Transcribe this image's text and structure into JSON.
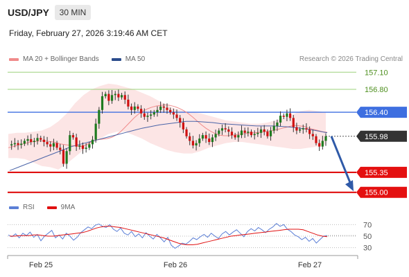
{
  "header": {
    "symbol": "USD/JPY",
    "timeframe": "30 MIN",
    "datetime": "Friday, February 27, 2026 3:19:46 AM CET"
  },
  "legend": {
    "items": [
      {
        "label": "MA 20 + Bollinger Bands",
        "color": "#f08a8a"
      },
      {
        "label": "MA 50",
        "color": "#2b4c8c"
      }
    ],
    "copyright": "Research © 2026 Trading Central"
  },
  "rsi_legend": {
    "items": [
      {
        "label": "RSI",
        "color": "#5b7fd6"
      },
      {
        "label": "9MA",
        "color": "#e01010"
      }
    ]
  },
  "chart_data": {
    "type": "candlestick",
    "instrument": "USD/JPY",
    "timeframe": "30 MIN",
    "ylim": [
      154.9,
      157.2
    ],
    "x_ticks": [
      "Feb 25",
      "Feb 26",
      "Feb 27"
    ],
    "levels": [
      {
        "label": "157.10",
        "value": 157.1,
        "kind": "resistance"
      },
      {
        "label": "156.80",
        "value": 156.8,
        "kind": "resistance"
      },
      {
        "label": "156.40",
        "value": 156.4,
        "kind": "pivot"
      },
      {
        "label": "155.98",
        "value": 155.98,
        "kind": "current"
      },
      {
        "label": "155.35",
        "value": 155.35,
        "kind": "support"
      },
      {
        "label": "155.00",
        "value": 155.0,
        "kind": "support"
      }
    ],
    "closes": [
      155.82,
      155.84,
      155.86,
      155.83,
      155.85,
      155.9,
      155.93,
      155.88,
      155.9,
      155.95,
      155.92,
      155.88,
      155.84,
      155.8,
      155.86,
      155.78,
      155.74,
      155.5,
      155.72,
      156.0,
      155.96,
      155.8,
      155.82,
      155.76,
      155.78,
      155.84,
      155.92,
      156.2,
      156.44,
      156.68,
      156.72,
      156.6,
      156.7,
      156.72,
      156.66,
      156.7,
      156.62,
      156.5,
      156.44,
      156.5,
      156.46,
      156.38,
      156.32,
      156.34,
      156.36,
      156.4,
      156.44,
      156.5,
      156.48,
      156.44,
      156.4,
      156.36,
      156.3,
      156.22,
      156.1,
      155.98,
      155.9,
      155.82,
      155.86,
      155.94,
      156.0,
      155.94,
      155.88,
      155.96,
      156.02,
      156.08,
      156.12,
      156.1,
      156.06,
      156.0,
      155.96,
      156.0,
      156.08,
      156.04,
      156.06,
      156.0,
      156.02,
      156.04,
      156.1,
      156.06,
      155.98,
      156.08,
      156.16,
      156.22,
      156.34,
      156.32,
      156.38,
      156.3,
      156.14,
      156.08,
      156.1,
      156.12,
      156.1,
      156.02,
      155.98,
      155.86,
      155.8,
      155.9,
      155.98
    ],
    "ma20": [
      155.78,
      155.8,
      155.82,
      155.84,
      155.86,
      155.88,
      155.89,
      155.9,
      155.9,
      155.89,
      155.88,
      155.86,
      155.84,
      155.83,
      155.82,
      155.81,
      155.8,
      155.82,
      155.86,
      155.9,
      155.92,
      155.93,
      155.94,
      155.96,
      156.0,
      156.06,
      156.14,
      156.22,
      156.3,
      156.37,
      156.42,
      156.46,
      156.49,
      156.51,
      156.52,
      156.53,
      156.52,
      156.5,
      156.47,
      156.43,
      156.38,
      156.32,
      156.25,
      156.18,
      156.12,
      156.07,
      156.03,
      156.0,
      155.99,
      155.99,
      156.0,
      156.01,
      156.02,
      156.03,
      156.04,
      156.04,
      156.05,
      156.06,
      156.07,
      156.08,
      156.1,
      156.12,
      156.14,
      156.16,
      156.17,
      156.16,
      156.15,
      156.12,
      156.1,
      156.08,
      156.06,
      156.05
    ],
    "ma50": [
      155.38,
      155.44,
      155.5,
      155.56,
      155.62,
      155.68,
      155.74,
      155.8,
      155.84,
      155.88,
      155.92,
      155.96,
      156.0,
      156.04,
      156.08,
      156.12,
      156.15,
      156.18,
      156.2,
      156.22,
      156.24,
      156.24,
      156.23,
      156.22,
      156.2,
      156.19,
      156.18,
      156.17,
      156.16,
      156.16,
      156.16,
      156.15,
      156.14,
      156.12,
      156.1,
      156.07,
      156.04
    ],
    "bollinger_upper": [
      156.02,
      156.04,
      156.04,
      156.06,
      156.08,
      156.14,
      156.24,
      156.38,
      156.56,
      156.7,
      156.8,
      156.86,
      156.9,
      156.88,
      156.84,
      156.8,
      156.74,
      156.68,
      156.6,
      156.52,
      156.46,
      156.42,
      156.4,
      156.38,
      156.34,
      156.3,
      156.26,
      156.24,
      156.22,
      156.2,
      156.2,
      156.22,
      156.26,
      156.3,
      156.36,
      156.42,
      156.44,
      156.42,
      156.4
    ],
    "bollinger_lower": [
      155.6,
      155.6,
      155.58,
      155.52,
      155.46,
      155.44,
      155.4,
      155.5,
      155.62,
      155.74,
      155.86,
      155.94,
      156.02,
      156.06,
      156.06,
      156.0,
      155.94,
      155.86,
      155.8,
      155.74,
      155.7,
      155.68,
      155.68,
      155.72,
      155.78,
      155.82,
      155.86,
      155.88,
      155.88,
      155.86,
      155.84,
      155.82,
      155.8,
      155.78,
      155.76,
      155.76,
      155.78,
      155.8,
      155.84
    ],
    "rsi": {
      "ticks": [
        70,
        50,
        30
      ],
      "ylim": [
        20,
        80
      ],
      "rsi": [
        52,
        49,
        54,
        47,
        55,
        51,
        57,
        48,
        53,
        42,
        50,
        55,
        60,
        47,
        52,
        45,
        55,
        50,
        43,
        48,
        56,
        61,
        66,
        63,
        69,
        71,
        67,
        65,
        70,
        62,
        58,
        64,
        55,
        52,
        58,
        49,
        54,
        47,
        56,
        50,
        45,
        53,
        47,
        40,
        48,
        34,
        29,
        33,
        38,
        36,
        41,
        47,
        44,
        49,
        53,
        48,
        55,
        50,
        46,
        54,
        58,
        52,
        57,
        61,
        55,
        49,
        58,
        63,
        59,
        65,
        61,
        56,
        62,
        66,
        72,
        67,
        70,
        62,
        58,
        52,
        49,
        44,
        48,
        41,
        46,
        38,
        44,
        50,
        51
      ],
      "ma9": [
        50,
        50,
        51,
        51,
        51,
        52,
        52,
        51,
        50,
        50,
        51,
        52,
        53,
        54,
        55,
        56,
        58,
        61,
        64,
        66,
        67,
        67,
        66,
        65,
        63,
        61,
        59,
        57,
        55,
        53,
        51,
        49,
        47,
        44,
        41,
        38,
        36,
        35,
        35,
        36,
        38,
        40,
        42,
        44,
        46,
        48,
        50,
        51,
        52,
        53,
        54,
        55,
        56,
        57,
        58,
        59,
        60,
        61,
        62,
        62,
        62,
        61,
        58,
        55,
        52,
        50,
        49
      ]
    }
  }
}
